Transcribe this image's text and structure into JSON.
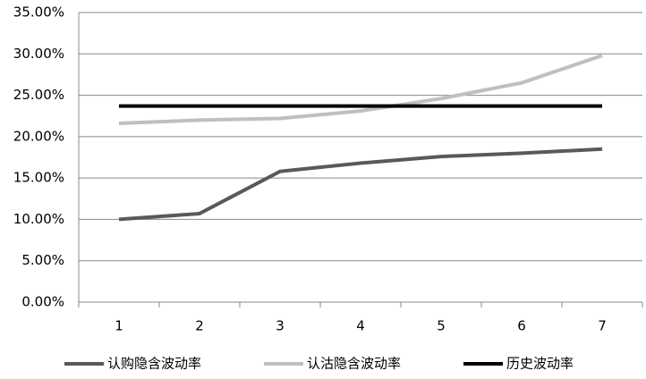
{
  "chart_data": {
    "type": "line",
    "categories": [
      "1",
      "2",
      "3",
      "4",
      "5",
      "6",
      "7"
    ],
    "series": [
      {
        "name": "认购隐含波动率",
        "color": "#595959",
        "values": [
          10.0,
          10.7,
          15.8,
          16.8,
          17.6,
          18.0,
          18.5
        ]
      },
      {
        "name": "认沽隐含波动率",
        "color": "#bfbfbf",
        "values": [
          21.6,
          22.0,
          22.2,
          23.1,
          24.6,
          26.5,
          29.8
        ]
      },
      {
        "name": "历史波动率",
        "color": "#000000",
        "values": [
          23.7,
          23.7,
          23.7,
          23.7,
          23.7,
          23.7,
          23.7
        ]
      }
    ],
    "ylim": [
      0,
      35
    ],
    "yticks": [
      {
        "value": 0,
        "label": "0.00%"
      },
      {
        "value": 5,
        "label": "5.00%"
      },
      {
        "value": 10,
        "label": "10.00%"
      },
      {
        "value": 15,
        "label": "15.00%"
      },
      {
        "value": 20,
        "label": "20.00%"
      },
      {
        "value": 25,
        "label": "25.00%"
      },
      {
        "value": 30,
        "label": "30.00%"
      },
      {
        "value": 35,
        "label": "35.00%"
      }
    ],
    "grid": true,
    "legend": "bottom"
  }
}
